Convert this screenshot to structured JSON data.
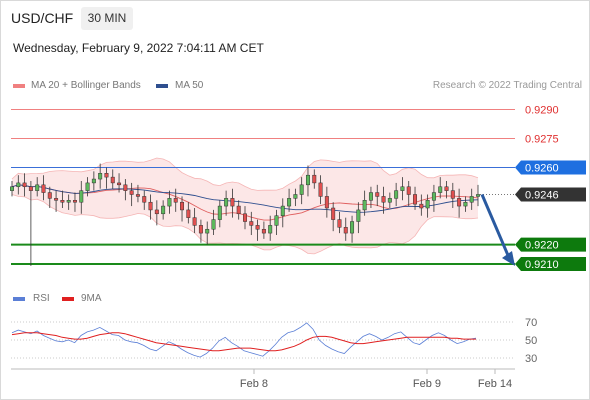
{
  "header": {
    "pair": "USD/CHF",
    "timeframe": "30 MIN",
    "datetime": "Wednesday, February 9, 2022 7:04:11 AM CET"
  },
  "legend": {
    "bb": {
      "label": "MA 20 + Bollinger Bands",
      "color": "#f08080"
    },
    "ma50": {
      "label": "MA 50",
      "color": "#2f4f8f"
    },
    "credit": "Research © 2022 Trading Central"
  },
  "rsi_legend": {
    "rsi": {
      "label": "RSI",
      "color": "#5b7fd6"
    },
    "ma": {
      "label": "9MA",
      "color": "#e02020"
    }
  },
  "chart_data": [
    {
      "type": "candlestick",
      "title": "USD/CHF",
      "ylim": [
        0.9206,
        0.9292
      ],
      "x_labels": [
        "Feb 8",
        "Feb 9",
        "Feb 14"
      ],
      "levels": [
        {
          "value": 0.929,
          "label": "0.9290",
          "kind": "resistance"
        },
        {
          "value": 0.9275,
          "label": "0.9275",
          "kind": "resistance"
        },
        {
          "value": 0.926,
          "label": "0.9260",
          "kind": "pivot"
        },
        {
          "value": 0.9246,
          "label": "0.9246",
          "kind": "last"
        },
        {
          "value": 0.922,
          "label": "0.9220",
          "kind": "target"
        },
        {
          "value": 0.921,
          "label": "0.9210",
          "kind": "target"
        }
      ],
      "forecast": {
        "direction": "down",
        "from": 0.9246,
        "to": 0.921
      },
      "close_path": [
        0.925,
        0.9252,
        0.925,
        0.9248,
        0.9251,
        0.9247,
        0.9244,
        0.9243,
        0.9242,
        0.9243,
        0.9242,
        0.9248,
        0.9252,
        0.9254,
        0.9257,
        0.9255,
        0.9252,
        0.9251,
        0.9248,
        0.9246,
        0.9245,
        0.9242,
        0.9238,
        0.9236,
        0.924,
        0.9244,
        0.9242,
        0.9238,
        0.9234,
        0.923,
        0.9226,
        0.9228,
        0.9233,
        0.924,
        0.9244,
        0.924,
        0.9236,
        0.9232,
        0.923,
        0.9228,
        0.9226,
        0.923,
        0.9235,
        0.924,
        0.9244,
        0.9246,
        0.9251,
        0.9256,
        0.9252,
        0.9245,
        0.9239,
        0.9233,
        0.9229,
        0.9226,
        0.9232,
        0.9238,
        0.9243,
        0.9247,
        0.9245,
        0.9242,
        0.9244,
        0.9248,
        0.925,
        0.9246,
        0.9241,
        0.9239,
        0.9243,
        0.9247,
        0.925,
        0.9248,
        0.9244,
        0.924,
        0.9242,
        0.9245,
        0.9246
      ]
    },
    {
      "type": "line",
      "title": "RSI",
      "ylim": [
        25,
        75
      ],
      "yticks": [
        70,
        50,
        30
      ],
      "series": [
        {
          "name": "RSI",
          "values": [
            58,
            61,
            59,
            57,
            60,
            55,
            52,
            49,
            48,
            50,
            47,
            55,
            59,
            61,
            64,
            60,
            56,
            55,
            50,
            48,
            47,
            44,
            40,
            38,
            43,
            48,
            45,
            40,
            36,
            33,
            31,
            35,
            41,
            49,
            53,
            47,
            43,
            38,
            36,
            34,
            32,
            38,
            45,
            53,
            58,
            60,
            64,
            69,
            62,
            50,
            44,
            40,
            37,
            35,
            42,
            48,
            54,
            57,
            54,
            50,
            53,
            57,
            59,
            53,
            47,
            45,
            50,
            55,
            58,
            55,
            50,
            46,
            48,
            51,
            52
          ]
        },
        {
          "name": "9MA",
          "values": [
            56,
            57,
            58,
            58,
            58,
            57,
            56,
            55,
            53,
            52,
            51,
            51,
            52,
            54,
            56,
            57,
            58,
            58,
            57,
            55,
            53,
            51,
            49,
            47,
            46,
            45,
            44,
            43,
            42,
            41,
            40,
            39,
            38,
            38,
            39,
            40,
            41,
            41,
            41,
            40,
            39,
            38,
            38,
            39,
            41,
            43,
            46,
            50,
            53,
            54,
            54,
            53,
            51,
            49,
            47,
            46,
            46,
            47,
            48,
            49,
            50,
            51,
            52,
            53,
            53,
            53,
            53,
            53,
            53,
            53,
            52,
            52,
            51,
            51,
            51
          ]
        }
      ]
    }
  ]
}
